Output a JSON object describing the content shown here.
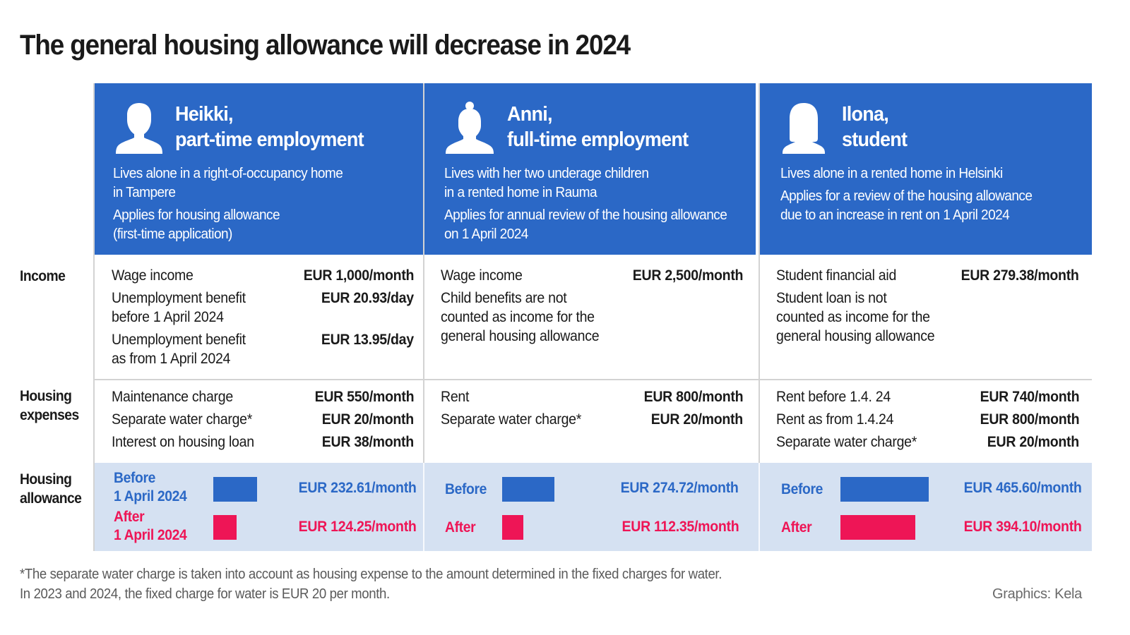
{
  "title": "The general housing allowance will decrease in 2024",
  "row_labels": {
    "income": "Income",
    "housing_expenses": [
      "Housing",
      "expenses"
    ],
    "housing_allowance": [
      "Housing",
      "allowance"
    ]
  },
  "colors": {
    "header_blue": "#2b68c6",
    "before_blue": "#2b68c6",
    "after_red": "#ee1556",
    "allowance_bg": "#d5e1f2"
  },
  "persons": [
    {
      "icon": "male-person-icon",
      "name_line1": "Heikki,",
      "name_line2": "part-time employment",
      "desc": [
        [
          "Lives alone in a right-of-occupancy home",
          "in Tampere"
        ],
        [
          "Applies for housing allowance",
          "(first-time application)"
        ]
      ],
      "income": [
        {
          "label": [
            "Wage income"
          ],
          "value": "EUR 1,000/month"
        },
        {
          "label": [
            "Unemployment benefit",
            "before 1 April 2024"
          ],
          "value": "EUR 20.93/day"
        },
        {
          "label": [
            "Unemployment benefit",
            "as from 1 April 2024"
          ],
          "value": "EUR 13.95/day"
        }
      ],
      "expenses": [
        {
          "label": "Maintenance charge",
          "value": "EUR 550/month"
        },
        {
          "label": "Separate water charge*",
          "value": "EUR 20/month"
        },
        {
          "label": "Interest on housing loan",
          "value": "EUR 38/month"
        }
      ],
      "allowance": {
        "before_label": [
          "Before",
          "1 April 2024"
        ],
        "after_label": [
          "After",
          "1 April 2024"
        ],
        "before_value": "EUR 232.61/month",
        "after_value": "EUR 124.25/month"
      }
    },
    {
      "icon": "female-person-bun-icon",
      "name_line1": "Anni,",
      "name_line2": "full-time employment",
      "desc": [
        [
          "Lives with her two underage children",
          "in a rented home in Rauma"
        ],
        [
          "Applies for annual review of the housing allowance",
          "on 1 April 2024"
        ]
      ],
      "income": [
        {
          "label": [
            "Wage income"
          ],
          "value": "EUR 2,500/month"
        },
        {
          "label": [
            "Child benefits are not",
            "counted as income for the",
            "general housing allowance"
          ],
          "value": ""
        }
      ],
      "expenses": [
        {
          "label": "Rent",
          "value": "EUR 800/month"
        },
        {
          "label": "Separate water charge*",
          "value": "EUR 20/month"
        }
      ],
      "allowance": {
        "before_label": [
          "Before"
        ],
        "after_label": [
          "After"
        ],
        "before_value": "EUR 274.72/month",
        "after_value": "EUR 112.35/month"
      }
    },
    {
      "icon": "female-person-long-hair-icon",
      "name_line1": "Ilona,",
      "name_line2": "student",
      "desc": [
        [
          "Lives alone in a rented home in Helsinki"
        ],
        [
          "Applies for a review of the housing allowance",
          "due to an increase in rent on 1 April 2024"
        ]
      ],
      "income": [
        {
          "label": [
            "Student financial aid"
          ],
          "value": "EUR 279.38/month"
        },
        {
          "label": [
            "Student loan is not",
            "counted as income for the",
            "general housing allowance"
          ],
          "value": ""
        }
      ],
      "expenses": [
        {
          "label": "Rent before 1.4. 24",
          "value": "EUR 740/month"
        },
        {
          "label": "Rent as from 1.4.24",
          "value": "EUR 800/month"
        },
        {
          "label": "Separate water charge*",
          "value": "EUR 20/month"
        }
      ],
      "allowance": {
        "before_label": [
          "Before"
        ],
        "after_label": [
          "After"
        ],
        "before_value": "EUR 465.60/month",
        "after_value": "EUR 394.10/month"
      }
    }
  ],
  "footnote": [
    "*The separate water charge is taken into account as housing expense to the amount determined in the fixed charges for water.",
    "In 2023 and 2024, the fixed charge for water is EUR 20 per month."
  ],
  "credit": "Graphics: Kela",
  "chart_data": {
    "type": "bar",
    "title": "Housing allowance before and after 1 April 2024 (EUR/month)",
    "categories": [
      "Heikki",
      "Anni",
      "Ilona"
    ],
    "series": [
      {
        "name": "Before 1 April 2024",
        "color": "#2b68c6",
        "values": [
          232.61,
          274.72,
          465.6
        ]
      },
      {
        "name": "After 1 April 2024",
        "color": "#ee1556",
        "values": [
          124.25,
          112.35,
          394.1
        ]
      }
    ],
    "xlabel": "",
    "ylabel": "EUR/month"
  }
}
